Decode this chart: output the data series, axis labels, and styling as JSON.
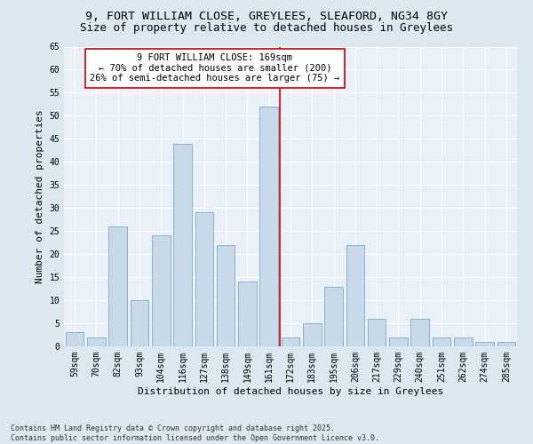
{
  "title_line1": "9, FORT WILLIAM CLOSE, GREYLEES, SLEAFORD, NG34 8GY",
  "title_line2": "Size of property relative to detached houses in Greylees",
  "xlabel": "Distribution of detached houses by size in Greylees",
  "ylabel": "Number of detached properties",
  "categories": [
    "59sqm",
    "70sqm",
    "82sqm",
    "93sqm",
    "104sqm",
    "116sqm",
    "127sqm",
    "138sqm",
    "149sqm",
    "161sqm",
    "172sqm",
    "183sqm",
    "195sqm",
    "206sqm",
    "217sqm",
    "229sqm",
    "240sqm",
    "251sqm",
    "262sqm",
    "274sqm",
    "285sqm"
  ],
  "values": [
    3,
    2,
    26,
    10,
    24,
    44,
    29,
    22,
    14,
    52,
    2,
    5,
    13,
    22,
    6,
    2,
    6,
    2,
    2,
    1,
    1
  ],
  "bar_color": "#c8daea",
  "bar_edge_color": "#7aaac8",
  "highlight_index": 9,
  "vline_color": "#cc0000",
  "annotation_text": "9 FORT WILLIAM CLOSE: 169sqm\n← 70% of detached houses are smaller (200)\n26% of semi-detached houses are larger (75) →",
  "ylim": [
    0,
    65
  ],
  "yticks": [
    0,
    5,
    10,
    15,
    20,
    25,
    30,
    35,
    40,
    45,
    50,
    55,
    60,
    65
  ],
  "fig_facecolor": "#dce8f0",
  "ax_facecolor": "#eaf0f8",
  "grid_color": "#ffffff",
  "footer_text": "Contains HM Land Registry data © Crown copyright and database right 2025.\nContains public sector information licensed under the Open Government Licence v3.0.",
  "title_fontsize": 9.5,
  "subtitle_fontsize": 9,
  "axis_label_fontsize": 8,
  "tick_fontsize": 7,
  "annotation_fontsize": 7.5,
  "footer_fontsize": 6
}
